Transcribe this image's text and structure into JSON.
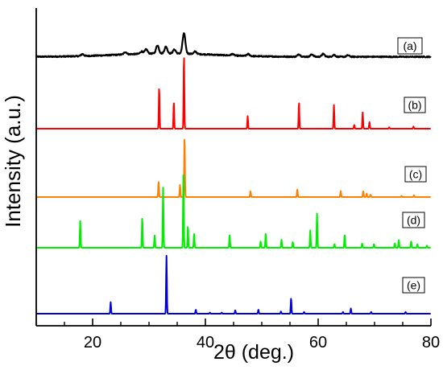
{
  "chart_data": {
    "type": "line",
    "xlabel": "2θ (deg.)",
    "ylabel": "Intensity (a.u.)",
    "xlim": [
      10,
      80
    ],
    "xticks": [
      20,
      40,
      60,
      80
    ],
    "grid": false,
    "series": [
      {
        "name": "(a)",
        "color": "#000000",
        "baseline": 0.04,
        "noise": 0.025,
        "peaks": [
          [
            18.2,
            0.04
          ],
          [
            25.8,
            0.05
          ],
          [
            28.7,
            0.05
          ],
          [
            29.5,
            0.09
          ],
          [
            31.5,
            0.17
          ],
          [
            33.0,
            0.14
          ],
          [
            34.5,
            0.08
          ],
          [
            36.2,
            0.42
          ],
          [
            38.2,
            0.05
          ],
          [
            44.8,
            0.03
          ],
          [
            47.6,
            0.04
          ],
          [
            56.6,
            0.05
          ],
          [
            58.9,
            0.05
          ],
          [
            60.9,
            0.06
          ],
          [
            62.8,
            0.04
          ],
          [
            65.3,
            0.03
          ]
        ],
        "halo": [
          [
            33,
            0.07,
            12
          ]
        ]
      },
      {
        "name": "(b)",
        "color": "#ff0000",
        "peaks": [
          [
            31.8,
            0.56
          ],
          [
            34.4,
            0.36
          ],
          [
            36.2,
            1.0
          ],
          [
            47.5,
            0.17
          ],
          [
            56.6,
            0.36
          ],
          [
            62.8,
            0.32
          ],
          [
            66.4,
            0.05
          ],
          [
            67.9,
            0.22
          ],
          [
            69.1,
            0.09
          ],
          [
            72.6,
            0.02
          ],
          [
            76.9,
            0.03
          ]
        ]
      },
      {
        "name": "(c)",
        "color": "#ff8000",
        "peaks": [
          [
            31.7,
            0.26
          ],
          [
            35.5,
            0.2
          ],
          [
            36.3,
            1.0
          ],
          [
            48.0,
            0.1
          ],
          [
            56.3,
            0.13
          ],
          [
            64.0,
            0.1
          ],
          [
            68.0,
            0.1
          ],
          [
            68.6,
            0.06
          ],
          [
            69.3,
            0.04
          ],
          [
            74.8,
            0.02
          ],
          [
            77.0,
            0.03
          ]
        ]
      },
      {
        "name": "(d)",
        "color": "#00ee00",
        "peaks": [
          [
            17.8,
            0.37
          ],
          [
            28.8,
            0.42
          ],
          [
            31.0,
            0.17
          ],
          [
            32.5,
            0.83
          ],
          [
            36.1,
            1.0
          ],
          [
            36.9,
            0.3
          ],
          [
            38.0,
            0.2
          ],
          [
            44.3,
            0.18
          ],
          [
            49.8,
            0.09
          ],
          [
            50.7,
            0.2
          ],
          [
            53.5,
            0.11
          ],
          [
            55.5,
            0.08
          ],
          [
            58.6,
            0.24
          ],
          [
            59.8,
            0.47
          ],
          [
            62.9,
            0.05
          ],
          [
            64.7,
            0.18
          ],
          [
            67.8,
            0.06
          ],
          [
            69.9,
            0.05
          ],
          [
            73.6,
            0.06
          ],
          [
            74.3,
            0.11
          ],
          [
            76.5,
            0.09
          ],
          [
            77.6,
            0.05
          ],
          [
            79.3,
            0.03
          ]
        ]
      },
      {
        "name": "(e)",
        "color": "#0000dd",
        "peaks": [
          [
            23.2,
            0.2
          ],
          [
            33.1,
            1.0
          ],
          [
            38.3,
            0.07
          ],
          [
            40.8,
            0.02
          ],
          [
            42.9,
            0.02
          ],
          [
            45.3,
            0.06
          ],
          [
            49.4,
            0.07
          ],
          [
            53.4,
            0.04
          ],
          [
            55.2,
            0.27
          ],
          [
            57.5,
            0.03
          ],
          [
            64.4,
            0.03
          ],
          [
            65.8,
            0.09
          ],
          [
            69.4,
            0.03
          ],
          [
            75.5,
            0.03
          ]
        ]
      }
    ]
  }
}
